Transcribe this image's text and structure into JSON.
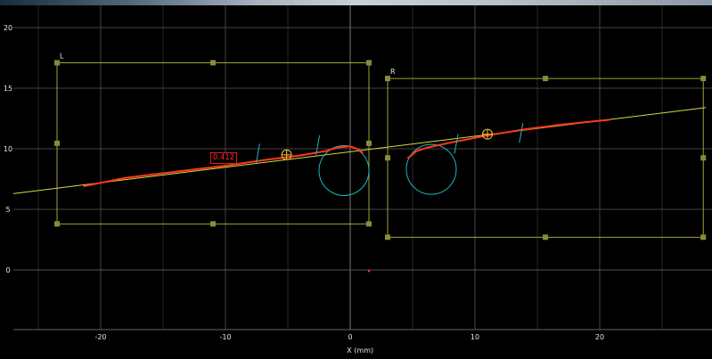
{
  "chart_data": {
    "type": "line",
    "xlabel": "X (mm)",
    "ylabel": "",
    "xlim": [
      -27,
      28.5
    ],
    "ylim": [
      -4.8,
      22
    ],
    "x_ticks": [
      -20,
      -10,
      0,
      10,
      20
    ],
    "y_ticks": [
      0,
      5,
      10,
      15,
      20
    ],
    "grid": true,
    "regions": [
      {
        "label": "L",
        "x": [
          -23.5,
          1.5
        ],
        "y": [
          3.8,
          17.1
        ]
      },
      {
        "label": "R",
        "x": [
          3,
          28.3
        ],
        "y": [
          2.7,
          15.8
        ]
      }
    ],
    "fit_line": {
      "points": [
        [
          -27,
          6.3
        ],
        [
          28.5,
          13.4
        ]
      ]
    },
    "series": [
      {
        "values": [
          [
            -21.4,
            6.9
          ],
          [
            -18,
            7.6
          ],
          [
            -14,
            8.1
          ],
          [
            -10,
            8.6
          ],
          [
            -7,
            9.05
          ],
          [
            -4,
            9.45
          ],
          [
            -2,
            9.8
          ],
          [
            -1,
            10.1
          ],
          [
            0,
            10.2
          ],
          [
            0.8,
            9.9
          ],
          [
            1,
            9.6
          ]
        ]
      },
      {
        "values": [
          [
            4.6,
            9.2
          ],
          [
            5.3,
            9.8
          ],
          [
            6.2,
            10.1
          ],
          [
            8,
            10.5
          ],
          [
            11,
            11.1
          ],
          [
            14,
            11.6
          ],
          [
            17,
            12
          ],
          [
            20.8,
            12.4
          ]
        ]
      }
    ],
    "circles": [
      {
        "cx": -0.5,
        "cy": 8.2,
        "r": 2
      },
      {
        "cx": 6.5,
        "cy": 8.3,
        "r": 2
      }
    ],
    "cross_markers": [
      [
        -7.4,
        9.6
      ],
      [
        -2.6,
        10.3
      ],
      [
        8.5,
        10.4
      ],
      [
        13.7,
        11.3
      ]
    ],
    "centroids": [
      [
        -5.1,
        9.5
      ],
      [
        11,
        11.2
      ]
    ],
    "stray_point": [
      1.5,
      -0.1
    ],
    "value_label": "0.412"
  },
  "colors": {
    "grid": "#444444",
    "region": "#c9c94a",
    "handle": "#8a8a3c",
    "fit_line": "#d8d84a",
    "profile": "#ff3a1a",
    "circle": "#1fb8c0",
    "centroid": "#f0c040"
  }
}
